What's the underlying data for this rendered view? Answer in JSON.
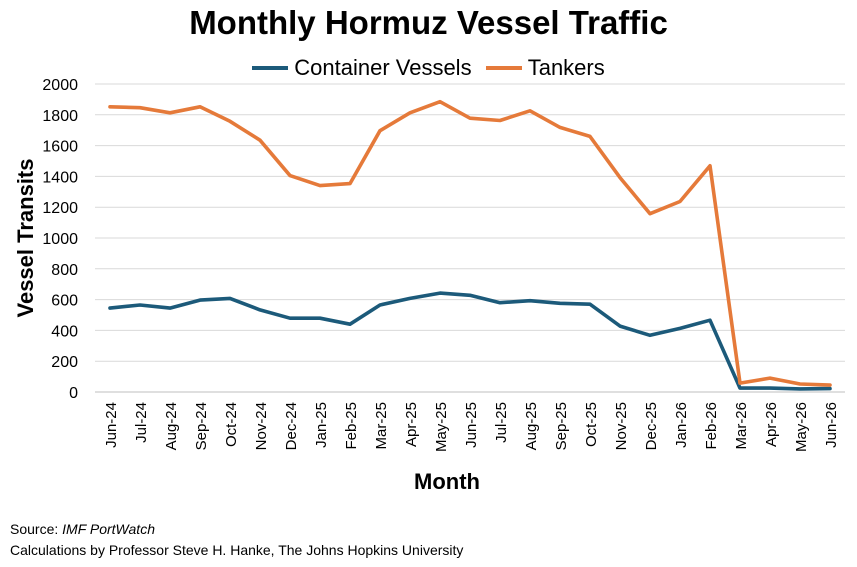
{
  "chart_data": {
    "type": "line",
    "title": "Monthly Hormuz Vessel Traffic",
    "xlabel": "Month",
    "ylabel": "Vessel Transits",
    "ylim": [
      0,
      2000
    ],
    "yticks": [
      0,
      200,
      400,
      600,
      800,
      1000,
      1200,
      1400,
      1600,
      1800,
      2000
    ],
    "grid": true,
    "legend_position": "top-center",
    "categories": [
      "Jun-24",
      "Jul-24",
      "Aug-24",
      "Sep-24",
      "Oct-24",
      "Nov-24",
      "Dec-24",
      "Jan-25",
      "Feb-25",
      "Mar-25",
      "Apr-25",
      "May-25",
      "Jun-25",
      "Jul-25",
      "Aug-25",
      "Sep-25",
      "Oct-25",
      "Nov-25",
      "Dec-25",
      "Jan-26",
      "Feb-26",
      "Mar-26",
      "Apr-26",
      "May-26",
      "Jun-26"
    ],
    "series": [
      {
        "name": "Container Vessels",
        "color": "#1c5a7a",
        "values": [
          545,
          565,
          545,
          597,
          608,
          533,
          479,
          479,
          440,
          565,
          608,
          642,
          628,
          580,
          593,
          576,
          570,
          428,
          368,
          413,
          466,
          25,
          25,
          20,
          22
        ]
      },
      {
        "name": "Tankers",
        "color": "#e57a3a",
        "values": [
          1852,
          1846,
          1813,
          1852,
          1758,
          1635,
          1405,
          1340,
          1353,
          1697,
          1813,
          1885,
          1778,
          1763,
          1826,
          1718,
          1660,
          1392,
          1158,
          1237,
          1469,
          58,
          90,
          52,
          45
        ]
      }
    ]
  },
  "footer": {
    "source_label": "Source: ",
    "source_name": "IMF PortWatch",
    "credit": "Calculations by Professor Steve H. Hanke, The Johns Hopkins University"
  }
}
